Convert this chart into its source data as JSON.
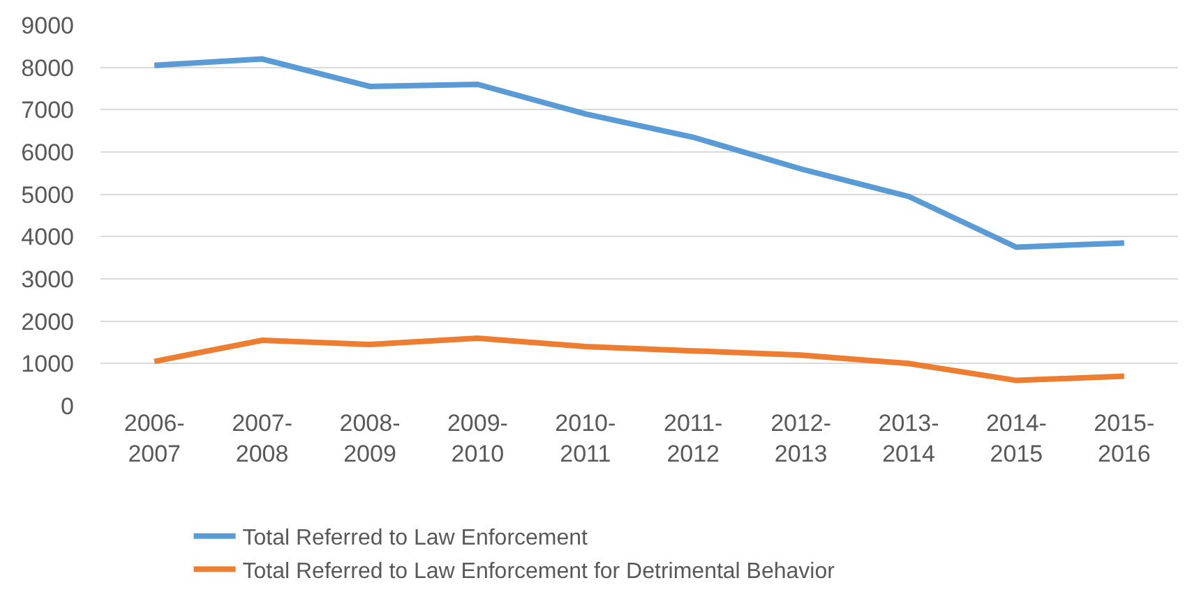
{
  "chart_data": {
    "type": "line",
    "categories": [
      "2006-2007",
      "2007-2008",
      "2008-2009",
      "2009-2010",
      "2010-2011",
      "2011-2012",
      "2012-2013",
      "2013-2014",
      "2014-2015",
      "2015-2016"
    ],
    "series": [
      {
        "name": "Total Referred to Law Enforcement",
        "color": "#5b9bd5",
        "values": [
          8050,
          8200,
          7550,
          7600,
          6900,
          6350,
          5600,
          4950,
          3750,
          3850
        ]
      },
      {
        "name": "Total Referred to Law Enforcement for Detrimental Behavior",
        "color": "#ed7d31",
        "values": [
          1050,
          1550,
          1450,
          1600,
          1400,
          1300,
          1200,
          1000,
          600,
          700
        ]
      }
    ],
    "ylim": [
      0,
      9000
    ],
    "yticks": [
      0,
      1000,
      2000,
      3000,
      4000,
      5000,
      6000,
      7000,
      8000,
      9000
    ],
    "grid": "y",
    "legend": "bottom left",
    "marker": "none",
    "line_style": "solid"
  }
}
